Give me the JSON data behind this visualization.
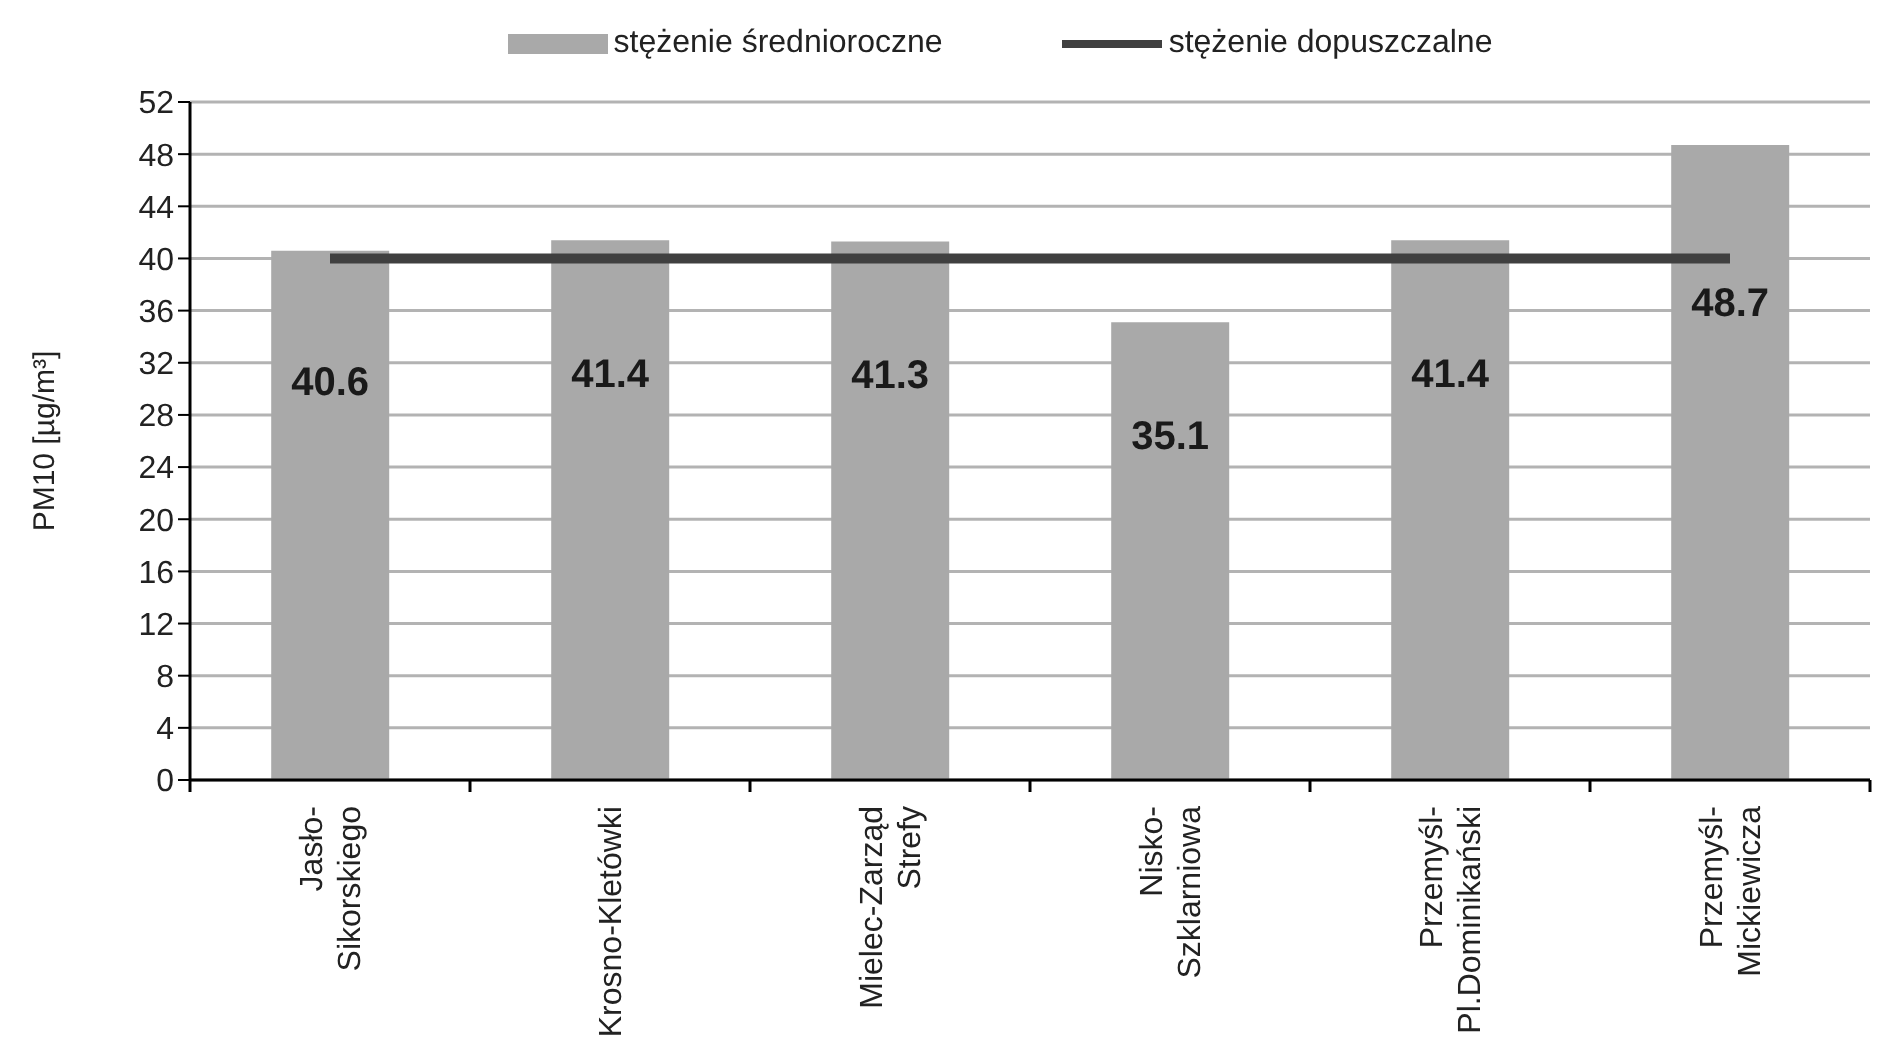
{
  "chart_data": {
    "type": "bar",
    "ylabel": "PM10 [µg/m³]",
    "categories": [
      "Jasło-Sikorskiego",
      "Krosno-Kletówki",
      "Mielec-Zarząd Strefy",
      "Nisko-Szklarniowa",
      "Przemyśl-Pl.Dominikański",
      "Przemyśl-Mickiewicza"
    ],
    "series": [
      {
        "name": "stężenie średnioroczne",
        "color": "#a9a9a9",
        "values": [
          40.6,
          41.4,
          41.3,
          35.1,
          41.4,
          48.7
        ],
        "value_labels": [
          "40.6",
          "41.4",
          "41.3",
          "35.1",
          "41.4",
          "48.7"
        ]
      },
      {
        "name": "stężenie dopuszczalne",
        "type": "line",
        "color": "#404040",
        "values": [
          40,
          40,
          40,
          40,
          40,
          40
        ],
        "marker": "none"
      }
    ],
    "ylim": [
      0,
      52
    ],
    "yticks": [
      0,
      4,
      8,
      12,
      16,
      20,
      24,
      28,
      32,
      36,
      40,
      44,
      48,
      52
    ],
    "grid": "y",
    "legend": "top"
  }
}
